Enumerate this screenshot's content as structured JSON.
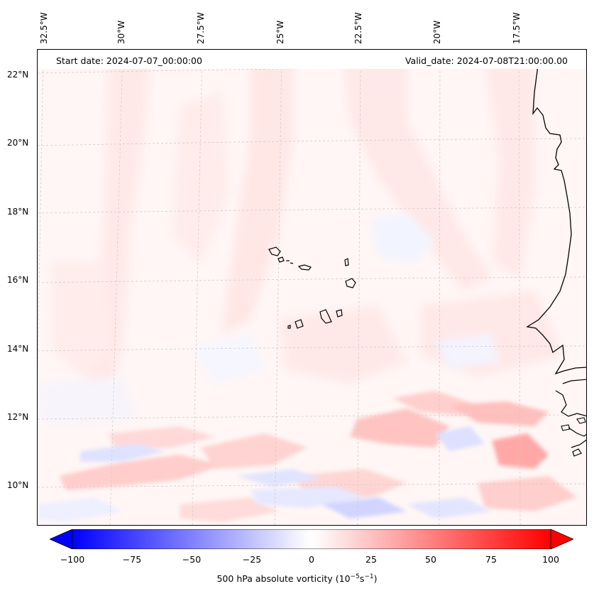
{
  "header": {
    "start_date": "Start date: 2024-07-07_00:00:00",
    "valid_date": "Valid_date: 2024-07-08T21:00:00.00"
  },
  "lon_labels": [
    "32.5°W",
    "30°W",
    "27.5°W",
    "25°W",
    "22.5°W",
    "20°W",
    "17.5°W"
  ],
  "lat_labels": [
    "22°N",
    "20°N",
    "18°N",
    "16°N",
    "14°N",
    "12°N",
    "10°N"
  ],
  "colorbar": {
    "ticks": [
      "−100",
      "−75",
      "−50",
      "−25",
      "0",
      "25",
      "50",
      "75",
      "100"
    ],
    "label_main": "500 hPa absolute vorticity (10",
    "label_exp1": "−5",
    "label_mid": "s",
    "label_exp2": "−1",
    "label_end": ")",
    "min_color": "#0000ff",
    "mid_color": "#ffffff",
    "max_color": "#ff0000"
  }
}
